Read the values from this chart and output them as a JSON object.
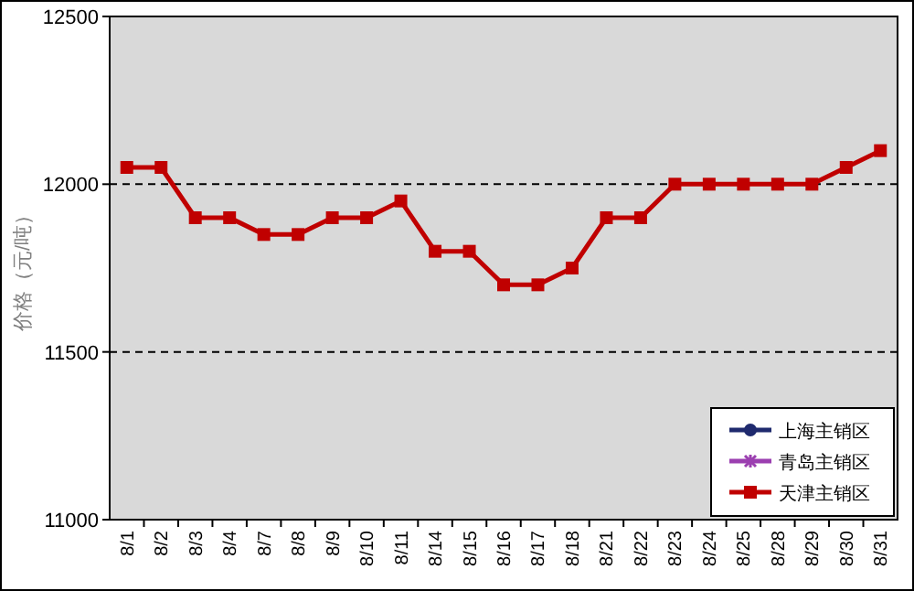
{
  "chart_data": {
    "type": "line",
    "ylabel": "价格（元/吨）",
    "categories": [
      "8/1",
      "8/2",
      "8/3",
      "8/4",
      "8/7",
      "8/8",
      "8/9",
      "8/10",
      "8/11",
      "8/14",
      "8/15",
      "8/16",
      "8/17",
      "8/18",
      "8/21",
      "8/22",
      "8/23",
      "8/24",
      "8/25",
      "8/28",
      "8/29",
      "8/30",
      "8/31"
    ],
    "series": [
      {
        "name": "上海主销区",
        "color": "#1f2a6e",
        "marker": "circle",
        "values": [
          null,
          null,
          null,
          null,
          null,
          null,
          null,
          null,
          null,
          null,
          null,
          null,
          null,
          null,
          null,
          null,
          null,
          null,
          null,
          null,
          null,
          null,
          null
        ]
      },
      {
        "name": "青岛主销区",
        "color": "#9b3fb0",
        "marker": "cross",
        "values": [
          null,
          null,
          null,
          null,
          null,
          null,
          null,
          null,
          null,
          null,
          null,
          null,
          null,
          null,
          null,
          null,
          null,
          null,
          null,
          null,
          null,
          null,
          null
        ]
      },
      {
        "name": "天津主销区",
        "color": "#c00000",
        "marker": "square",
        "values": [
          12050,
          12050,
          11900,
          11900,
          11850,
          11850,
          11900,
          11900,
          11950,
          11800,
          11800,
          11700,
          11700,
          11750,
          11900,
          11900,
          12000,
          12000,
          12000,
          12000,
          12000,
          12050,
          12100
        ]
      }
    ],
    "ylim": [
      11000,
      12500
    ],
    "yticks": [
      11000,
      11500,
      12000,
      12500
    ],
    "grid": "y",
    "legend": "bottom right"
  }
}
